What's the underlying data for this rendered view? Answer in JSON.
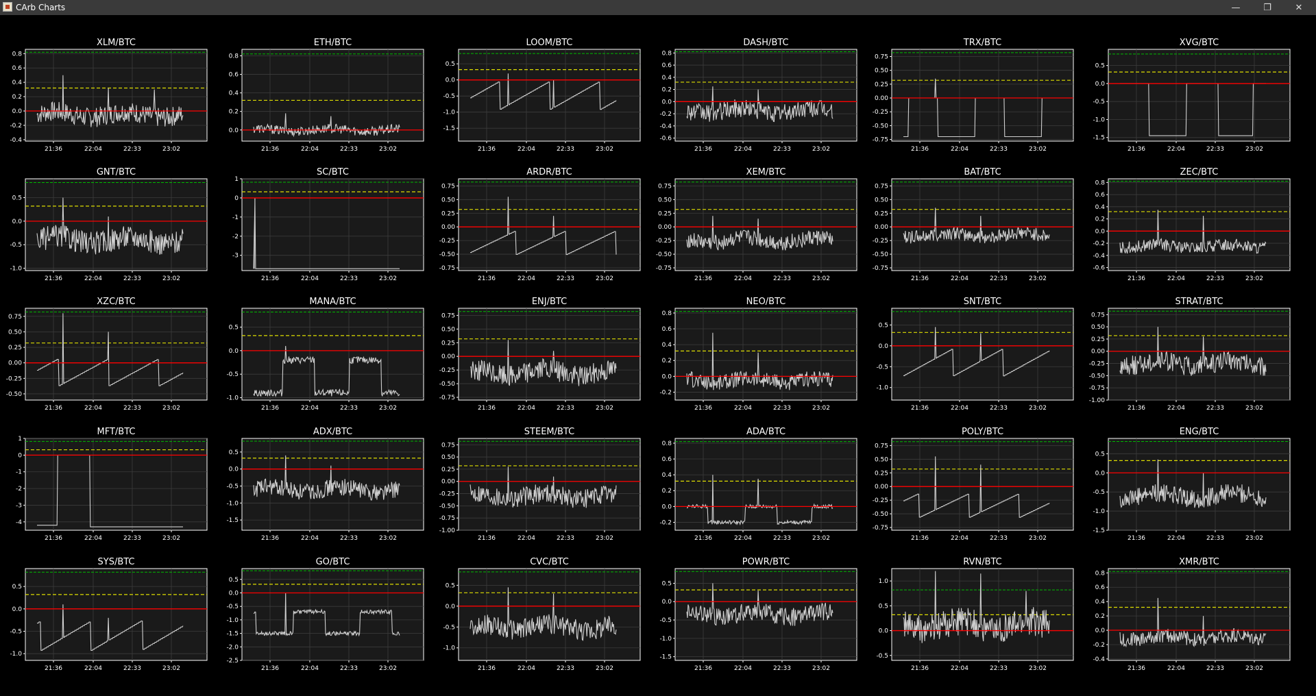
{
  "window": {
    "title": "CArb Charts"
  },
  "titlebar_buttons": {
    "minimize": "—",
    "maximize": "❐",
    "close": "✕"
  },
  "colors": {
    "background": "#000000",
    "plot_bg": "#1a1a1a",
    "grid": "#3c3c3c",
    "line": "#d0d0d0",
    "zero_line": "#ff0000",
    "upper_line": "#00bb00",
    "mid_line": "#dddd00"
  },
  "chart_data": [
    {
      "type": "line",
      "title": "XLM/BTC",
      "x_ticks": [
        "21:36",
        "22:04",
        "22:33",
        "23:02"
      ],
      "y_ticks": [
        "0.8",
        "0.6",
        "0.4",
        "0.2",
        "0.0",
        "-0.2",
        "-0.4"
      ],
      "ylim": [
        -0.42,
        0.86
      ],
      "ref_lines": [
        0.82,
        0.32,
        0.0
      ],
      "style": "noisy",
      "base": -0.05,
      "amp": 0.14,
      "spikes": [
        0.5,
        0.32,
        0.3
      ],
      "grid": true
    },
    {
      "type": "line",
      "title": "ETH/BTC",
      "x_ticks": [
        "21:36",
        "22:04",
        "22:33",
        "23:02"
      ],
      "y_ticks": [
        "0.8",
        "0.6",
        "0.4",
        "0.2",
        "0.0"
      ],
      "ylim": [
        -0.12,
        0.87
      ],
      "ref_lines": [
        0.82,
        0.32,
        0.0
      ],
      "style": "noisy",
      "base": 0.0,
      "amp": 0.05,
      "spikes": [
        0.18,
        0.15
      ],
      "grid": true
    },
    {
      "type": "line",
      "title": "LOOM/BTC",
      "x_ticks": [
        "21:36",
        "22:04",
        "22:33",
        "23:02"
      ],
      "y_ticks": [
        "0.5",
        "0.0",
        "-0.5",
        "-1.0",
        "-1.5"
      ],
      "ylim": [
        -1.9,
        0.95
      ],
      "ref_lines": [
        0.82,
        0.32,
        0.0
      ],
      "style": "steps",
      "base": -0.5,
      "amp": 0.4,
      "spikes": [
        0.2,
        0.0
      ],
      "grid": true
    },
    {
      "type": "line",
      "title": "DASH/BTC",
      "x_ticks": [
        "21:36",
        "22:04",
        "22:33",
        "23:02"
      ],
      "y_ticks": [
        "0.8",
        "0.6",
        "0.4",
        "0.2",
        "0.0",
        "-0.2",
        "-0.4",
        "-0.6"
      ],
      "ylim": [
        -0.65,
        0.86
      ],
      "ref_lines": [
        0.82,
        0.32,
        0.0
      ],
      "style": "noisy",
      "base": -0.15,
      "amp": 0.15,
      "spikes": [
        0.25,
        0.2
      ],
      "grid": true
    },
    {
      "type": "line",
      "title": "TRX/BTC",
      "x_ticks": [
        "21:36",
        "22:04",
        "22:33",
        "23:02"
      ],
      "y_ticks": [
        "0.75",
        "0.50",
        "0.25",
        "0.00",
        "-0.25",
        "-0.50",
        "-0.75"
      ],
      "ylim": [
        -0.78,
        0.88
      ],
      "ref_lines": [
        0.82,
        0.32,
        0.0
      ],
      "style": "binary",
      "base": -0.35,
      "amp": 0.0,
      "low": -0.7,
      "high": 0.0,
      "spikes": [
        0.35
      ],
      "grid": true
    },
    {
      "type": "line",
      "title": "XVG/BTC",
      "x_ticks": [
        "21:36",
        "22:04",
        "22:33",
        "23:02"
      ],
      "y_ticks": [
        "0.5",
        "0.0",
        "-0.5",
        "-1.0",
        "-1.5"
      ],
      "ylim": [
        -1.6,
        0.95
      ],
      "ref_lines": [
        0.82,
        0.32,
        0.0
      ],
      "style": "binary",
      "base": -1.4,
      "amp": 0.0,
      "low": -1.45,
      "high": 0.0,
      "spikes": [],
      "grid": true
    },
    {
      "type": "line",
      "title": "GNT/BTC",
      "x_ticks": [
        "21:36",
        "22:04",
        "22:33",
        "23:02"
      ],
      "y_ticks": [
        "0.5",
        "0.0",
        "-0.5",
        "-1.0"
      ],
      "ylim": [
        -1.05,
        0.9
      ],
      "ref_lines": [
        0.82,
        0.32,
        0.0
      ],
      "style": "noisy",
      "base": -0.4,
      "amp": 0.25,
      "spikes": [
        0.5,
        0.1
      ],
      "grid": true
    },
    {
      "type": "line",
      "title": "SC/BTC",
      "x_ticks": [
        "21:36",
        "22:04",
        "22:33",
        "23:02"
      ],
      "y_ticks": [
        "1",
        "0",
        "-1",
        "-2",
        "-3"
      ],
      "ylim": [
        -3.8,
        1.0
      ],
      "ref_lines": [
        0.82,
        0.32,
        0.0
      ],
      "style": "flat",
      "base": -3.7,
      "amp": 0.0,
      "spikes": [],
      "grid": true
    },
    {
      "type": "line",
      "title": "ARDR/BTC",
      "x_ticks": [
        "21:36",
        "22:04",
        "22:33",
        "23:02"
      ],
      "y_ticks": [
        "0.75",
        "0.50",
        "0.25",
        "0.00",
        "-0.25",
        "-0.50",
        "-0.75"
      ],
      "ylim": [
        -0.8,
        0.88
      ],
      "ref_lines": [
        0.82,
        0.32,
        0.0
      ],
      "style": "steps",
      "base": -0.3,
      "amp": 0.2,
      "spikes": [
        0.55,
        0.2
      ],
      "grid": true
    },
    {
      "type": "line",
      "title": "XEM/BTC",
      "x_ticks": [
        "21:36",
        "22:04",
        "22:33",
        "23:02"
      ],
      "y_ticks": [
        "0.75",
        "0.50",
        "0.25",
        "0.00",
        "-0.25",
        "-0.50",
        "-0.75"
      ],
      "ylim": [
        -0.8,
        0.88
      ],
      "ref_lines": [
        0.82,
        0.32,
        0.0
      ],
      "style": "noisy",
      "base": -0.25,
      "amp": 0.15,
      "spikes": [
        0.2,
        0.15
      ],
      "grid": true
    },
    {
      "type": "line",
      "title": "BAT/BTC",
      "x_ticks": [
        "21:36",
        "22:04",
        "22:33",
        "23:02"
      ],
      "y_ticks": [
        "0.75",
        "0.50",
        "0.25",
        "0.00",
        "-0.25",
        "-0.50",
        "-0.75"
      ],
      "ylim": [
        -0.8,
        0.88
      ],
      "ref_lines": [
        0.82,
        0.32,
        0.0
      ],
      "style": "noisy",
      "base": -0.15,
      "amp": 0.12,
      "spikes": [
        0.35,
        0.2
      ],
      "grid": true
    },
    {
      "type": "line",
      "title": "ZEC/BTC",
      "x_ticks": [
        "21:36",
        "22:04",
        "22:33",
        "23:02"
      ],
      "y_ticks": [
        "0.8",
        "0.6",
        "0.4",
        "0.2",
        "0.0",
        "-0.2",
        "-0.4",
        "-0.6"
      ],
      "ylim": [
        -0.65,
        0.86
      ],
      "ref_lines": [
        0.82,
        0.32,
        0.0
      ],
      "style": "noisy",
      "base": -0.25,
      "amp": 0.1,
      "spikes": [
        0.35,
        0.25
      ],
      "grid": true
    },
    {
      "type": "line",
      "title": "XZC/BTC",
      "x_ticks": [
        "21:36",
        "22:04",
        "22:33",
        "23:02"
      ],
      "y_ticks": [
        "0.75",
        "0.50",
        "0.25",
        "0.00",
        "-0.25",
        "-0.50"
      ],
      "ylim": [
        -0.6,
        0.88
      ],
      "ref_lines": [
        0.82,
        0.32,
        0.0
      ],
      "style": "steps",
      "base": -0.15,
      "amp": 0.2,
      "spikes": [
        0.8,
        0.5
      ],
      "grid": true
    },
    {
      "type": "line",
      "title": "MANA/BTC",
      "x_ticks": [
        "21:36",
        "22:04",
        "22:33",
        "23:02"
      ],
      "y_ticks": [
        "0.5",
        "0.0",
        "-0.5",
        "-1.0"
      ],
      "ylim": [
        -1.05,
        0.9
      ],
      "ref_lines": [
        0.82,
        0.32,
        0.0
      ],
      "style": "binary",
      "base": -0.4,
      "amp": 0.3,
      "low": -0.9,
      "high": -0.2,
      "spikes": [
        0.1
      ],
      "grid": true
    },
    {
      "type": "line",
      "title": "ENJ/BTC",
      "x_ticks": [
        "21:36",
        "22:04",
        "22:33",
        "23:02"
      ],
      "y_ticks": [
        "0.75",
        "0.50",
        "0.25",
        "0.00",
        "-0.25",
        "-0.50",
        "-0.75"
      ],
      "ylim": [
        -0.8,
        0.88
      ],
      "ref_lines": [
        0.82,
        0.32,
        0.0
      ],
      "style": "noisy",
      "base": -0.3,
      "amp": 0.2,
      "spikes": [
        0.3,
        0.1
      ],
      "grid": true
    },
    {
      "type": "line",
      "title": "NEO/BTC",
      "x_ticks": [
        "21:36",
        "22:04",
        "22:33",
        "23:02"
      ],
      "y_ticks": [
        "0.8",
        "0.6",
        "0.4",
        "0.2",
        "0.0",
        "-0.2"
      ],
      "ylim": [
        -0.3,
        0.86
      ],
      "ref_lines": [
        0.82,
        0.32,
        0.0
      ],
      "style": "noisy",
      "base": -0.05,
      "amp": 0.1,
      "spikes": [
        0.55,
        0.3
      ],
      "grid": true
    },
    {
      "type": "line",
      "title": "SNT/BTC",
      "x_ticks": [
        "21:36",
        "22:04",
        "22:33",
        "23:02"
      ],
      "y_ticks": [
        "0.5",
        "0.0",
        "-0.5",
        "-1.0"
      ],
      "ylim": [
        -1.3,
        0.9
      ],
      "ref_lines": [
        0.82,
        0.32,
        0.0
      ],
      "style": "steps",
      "base": -0.4,
      "amp": 0.3,
      "spikes": [
        0.45,
        0.3
      ],
      "grid": true
    },
    {
      "type": "line",
      "title": "STRAT/BTC",
      "x_ticks": [
        "21:36",
        "22:04",
        "22:33",
        "23:02"
      ],
      "y_ticks": [
        "0.75",
        "0.50",
        "0.25",
        "0.00",
        "-0.25",
        "-0.50",
        "-0.75",
        "-1.00"
      ],
      "ylim": [
        -1.0,
        0.88
      ],
      "ref_lines": [
        0.82,
        0.32,
        0.0
      ],
      "style": "noisy",
      "base": -0.25,
      "amp": 0.2,
      "spikes": [
        0.5,
        0.3
      ],
      "grid": true
    },
    {
      "type": "line",
      "title": "MFT/BTC",
      "x_ticks": [
        "21:36",
        "22:04",
        "22:33",
        "23:02"
      ],
      "y_ticks": [
        "1",
        "0",
        "-1",
        "-2",
        "-3",
        "-4"
      ],
      "ylim": [
        -4.5,
        1.0
      ],
      "ref_lines": [
        0.82,
        0.32,
        0.0
      ],
      "style": "mft",
      "base": -4.2,
      "amp": 0.0,
      "spikes": [],
      "grid": true
    },
    {
      "type": "line",
      "title": "ADX/BTC",
      "x_ticks": [
        "21:36",
        "22:04",
        "22:33",
        "23:02"
      ],
      "y_ticks": [
        "0.5",
        "0.0",
        "-0.5",
        "-1.0",
        "-1.5"
      ],
      "ylim": [
        -1.8,
        0.9
      ],
      "ref_lines": [
        0.82,
        0.32,
        0.0
      ],
      "style": "noisy",
      "base": -0.6,
      "amp": 0.25,
      "spikes": [
        0.4,
        0.1
      ],
      "grid": true
    },
    {
      "type": "line",
      "title": "STEEM/BTC",
      "x_ticks": [
        "21:36",
        "22:04",
        "22:33",
        "23:02"
      ],
      "y_ticks": [
        "0.75",
        "0.50",
        "0.25",
        "0.00",
        "-0.25",
        "-0.50",
        "-0.75",
        "-1.00"
      ],
      "ylim": [
        -1.0,
        0.88
      ],
      "ref_lines": [
        0.82,
        0.32,
        0.0
      ],
      "style": "noisy",
      "base": -0.3,
      "amp": 0.2,
      "spikes": [
        0.3,
        0.1
      ],
      "grid": true
    },
    {
      "type": "line",
      "title": "ADA/BTC",
      "x_ticks": [
        "21:36",
        "22:04",
        "22:33",
        "23:02"
      ],
      "y_ticks": [
        "0.8",
        "0.6",
        "0.4",
        "0.2",
        "0.0",
        "-0.2"
      ],
      "ylim": [
        -0.3,
        0.86
      ],
      "ref_lines": [
        0.82,
        0.32,
        0.0
      ],
      "style": "binary",
      "base": -0.05,
      "amp": 0.1,
      "low": -0.2,
      "high": 0.0,
      "spikes": [
        0.4,
        0.35
      ],
      "grid": true
    },
    {
      "type": "line",
      "title": "POLY/BTC",
      "x_ticks": [
        "21:36",
        "22:04",
        "22:33",
        "23:02"
      ],
      "y_ticks": [
        "0.75",
        "0.50",
        "0.25",
        "0.00",
        "-0.25",
        "-0.50",
        "-0.75"
      ],
      "ylim": [
        -0.8,
        0.88
      ],
      "ref_lines": [
        0.82,
        0.32,
        0.0
      ],
      "style": "steps",
      "base": -0.35,
      "amp": 0.2,
      "spikes": [
        0.55,
        0.4
      ],
      "grid": true
    },
    {
      "type": "line",
      "title": "ENG/BTC",
      "x_ticks": [
        "21:36",
        "22:04",
        "22:33",
        "23:02"
      ],
      "y_ticks": [
        "0.5",
        "0.0",
        "-0.5",
        "-1.0",
        "-1.5"
      ],
      "ylim": [
        -1.5,
        0.9
      ],
      "ref_lines": [
        0.82,
        0.32,
        0.0
      ],
      "style": "noisy",
      "base": -0.6,
      "amp": 0.25,
      "spikes": [
        0.35,
        0.0
      ],
      "grid": true
    },
    {
      "type": "line",
      "title": "SYS/BTC",
      "x_ticks": [
        "21:36",
        "22:04",
        "22:33",
        "23:02"
      ],
      "y_ticks": [
        "0.5",
        "0.0",
        "-0.5",
        "-1.0"
      ],
      "ylim": [
        -1.15,
        0.9
      ],
      "ref_lines": [
        0.82,
        0.32,
        0.0
      ],
      "style": "steps",
      "base": -0.6,
      "amp": 0.3,
      "spikes": [
        0.1,
        -0.2
      ],
      "grid": true
    },
    {
      "type": "line",
      "title": "GO/BTC",
      "x_ticks": [
        "21:36",
        "22:04",
        "22:33",
        "23:02"
      ],
      "y_ticks": [
        "0.5",
        "0.0",
        "-0.5",
        "-1.0",
        "-1.5",
        "-2.0",
        "-2.5"
      ],
      "ylim": [
        -2.5,
        0.9
      ],
      "ref_lines": [
        0.82,
        0.32,
        0.0
      ],
      "style": "binary",
      "base": -0.8,
      "amp": 0.3,
      "low": -1.5,
      "high": -0.7,
      "spikes": [
        0.0
      ],
      "grid": true
    },
    {
      "type": "line",
      "title": "CVC/BTC",
      "x_ticks": [
        "21:36",
        "22:04",
        "22:33",
        "23:02"
      ],
      "y_ticks": [
        "0.5",
        "0.0",
        "-0.5",
        "-1.0"
      ],
      "ylim": [
        -1.3,
        0.9
      ],
      "ref_lines": [
        0.82,
        0.32,
        0.0
      ],
      "style": "noisy",
      "base": -0.5,
      "amp": 0.25,
      "spikes": [
        0.45,
        0.3
      ],
      "grid": true
    },
    {
      "type": "line",
      "title": "POWR/BTC",
      "x_ticks": [
        "21:36",
        "22:04",
        "22:33",
        "23:02"
      ],
      "y_ticks": [
        "0.5",
        "0.0",
        "-0.5",
        "-1.0",
        "-1.5"
      ],
      "ylim": [
        -1.6,
        0.9
      ],
      "ref_lines": [
        0.82,
        0.32,
        0.0
      ],
      "style": "noisy",
      "base": -0.35,
      "amp": 0.25,
      "spikes": [
        0.5,
        0.3
      ],
      "grid": true
    },
    {
      "type": "line",
      "title": "RVN/BTC",
      "x_ticks": [
        "21:36",
        "22:04",
        "22:33",
        "23:02"
      ],
      "y_ticks": [
        "1.0",
        "0.5",
        "0.0",
        "-0.5"
      ],
      "ylim": [
        -0.6,
        1.25
      ],
      "ref_lines": [
        0.82,
        0.32,
        0.0
      ],
      "style": "noisy",
      "base": 0.1,
      "amp": 0.3,
      "spikes": [
        1.2,
        1.15,
        0.8
      ],
      "grid": true
    },
    {
      "type": "line",
      "title": "XMR/BTC",
      "x_ticks": [
        "21:36",
        "22:04",
        "22:33",
        "23:02"
      ],
      "y_ticks": [
        "0.8",
        "0.6",
        "0.4",
        "0.2",
        "0.0",
        "-0.2",
        "-0.4"
      ],
      "ylim": [
        -0.42,
        0.86
      ],
      "ref_lines": [
        0.82,
        0.32,
        0.0
      ],
      "style": "noisy",
      "base": -0.1,
      "amp": 0.1,
      "spikes": [
        0.45,
        0.2
      ],
      "grid": true
    }
  ]
}
